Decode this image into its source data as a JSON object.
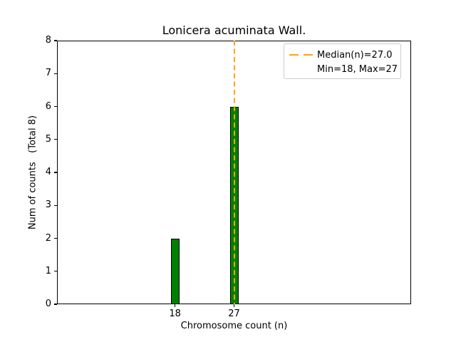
{
  "chart_data": {
    "type": "bar",
    "title": "Lonicera acuminata Wall.",
    "xlabel": "Chromosome count (n)",
    "ylabel": "Num of counts   (Total 8)",
    "categories": [
      18,
      27
    ],
    "values": [
      2,
      6
    ],
    "total_counts": 8,
    "min": 18,
    "max": 27,
    "bar_color": "#008000",
    "bar_edge_color": "#000000",
    "median_line": {
      "value": 27.0,
      "color": "#FFA500",
      "style": "dashed",
      "orientation": "vertical"
    },
    "xlim": [
      0,
      54
    ],
    "ylim": [
      0,
      8
    ],
    "xticks": [
      18,
      27
    ],
    "yticks": [
      0,
      1,
      2,
      3,
      4,
      5,
      6,
      7,
      8
    ],
    "grid": false,
    "legend": {
      "position": "upper right",
      "entries": [
        {
          "label": "Median(n)=27.0",
          "marker": "dashed-line",
          "color": "#FFA500"
        },
        {
          "label": "Min=18, Max=27",
          "marker": "none",
          "color": null
        }
      ]
    }
  }
}
